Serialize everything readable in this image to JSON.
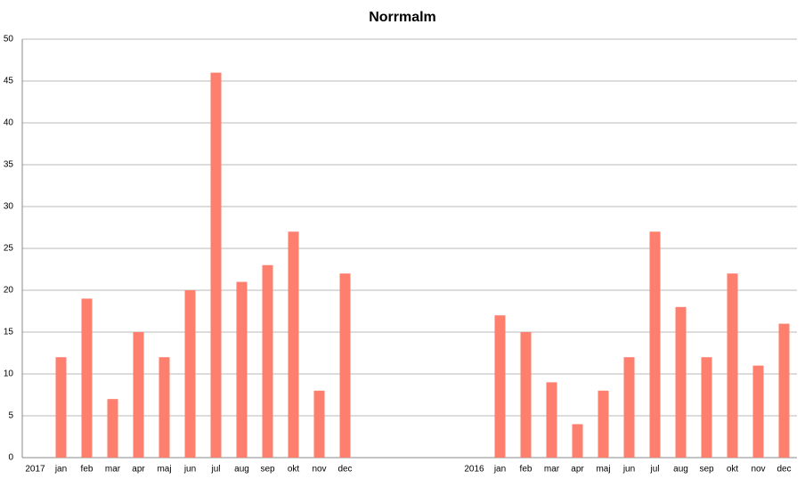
{
  "chart_data": {
    "type": "bar",
    "title": "Norrmalm",
    "categories": [
      "2017",
      "jan",
      "feb",
      "mar",
      "apr",
      "maj",
      "jun",
      "jul",
      "aug",
      "sep",
      "okt",
      "nov",
      "dec",
      null,
      null,
      null,
      null,
      "2016",
      "jan",
      "feb",
      "mar",
      "apr",
      "maj",
      "jun",
      "jul",
      "aug",
      "sep",
      "okt",
      "nov",
      "dec"
    ],
    "values": [
      null,
      12,
      19,
      7,
      15,
      12,
      20,
      46,
      21,
      23,
      27,
      8,
      22,
      null,
      null,
      null,
      null,
      null,
      17,
      15,
      9,
      4,
      8,
      12,
      27,
      18,
      12,
      22,
      11,
      16
    ],
    "color": "#ff7f6e",
    "ylim": [
      0,
      50
    ],
    "yticks": [
      0,
      5,
      10,
      15,
      20,
      25,
      30,
      35,
      40,
      45,
      50
    ],
    "grid": true
  }
}
